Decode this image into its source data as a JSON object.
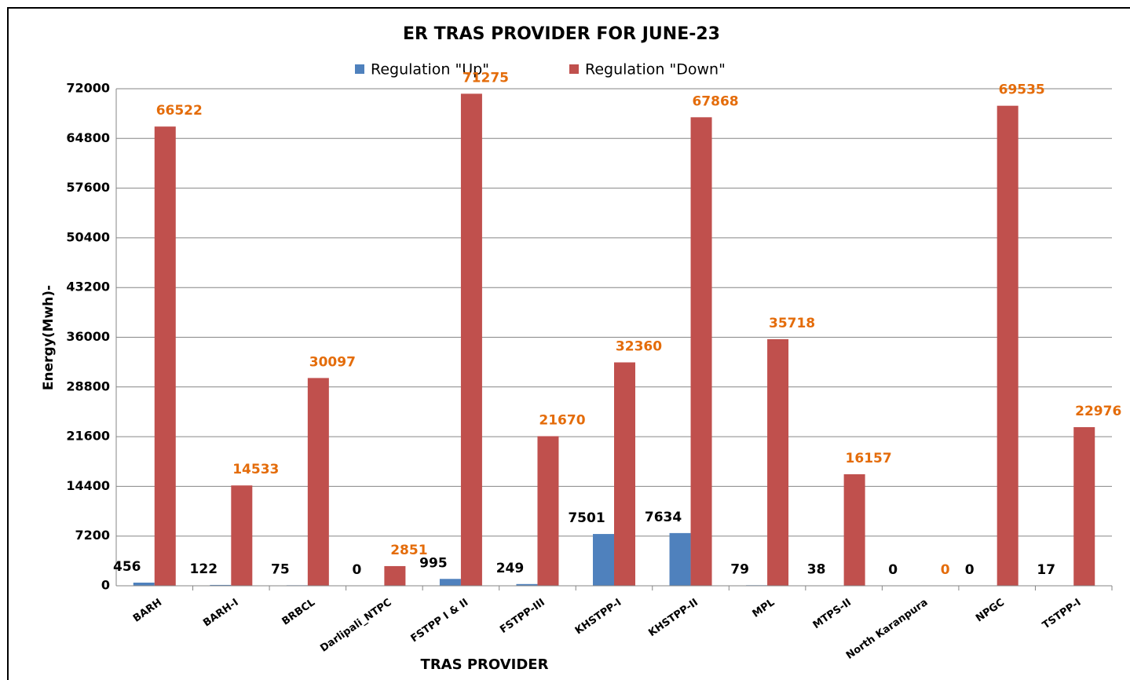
{
  "chart_data": {
    "type": "bar",
    "title": "ER TRAS PROVIDER FOR JUNE-23",
    "x_label": "TRAS PROVIDER",
    "y_label": "Energy(Mwh)-",
    "categories": [
      "BARH",
      "BARH-I",
      "BRBCL",
      "Darlipali_NTPC",
      "FSTPP I & II",
      "FSTPP-III",
      "KHSTPP-I",
      "KHSTPP-II",
      "MPL",
      "MTPS-II",
      "North Karanpura",
      "NPGC",
      "TSTPP-I"
    ],
    "series": [
      {
        "name": "Regulation \"Up\"",
        "color": "#4f81bd",
        "label_color": "#000000",
        "values": [
          456,
          122,
          75,
          0,
          995,
          249,
          7501,
          7634,
          79,
          38,
          0,
          0,
          17
        ]
      },
      {
        "name": "Regulation \"Down\"",
        "color": "#c0504d",
        "label_color": "#e46c0a",
        "values": [
          66522,
          14533,
          30097,
          2851,
          71275,
          21670,
          32360,
          67868,
          35718,
          16157,
          0,
          69535,
          22976
        ]
      }
    ],
    "ylim": [
      0,
      72000
    ],
    "yticks": [
      0,
      7200,
      14400,
      21600,
      28800,
      36000,
      43200,
      50400,
      57600,
      64800,
      72000
    ],
    "grid": true,
    "legend": "top"
  }
}
